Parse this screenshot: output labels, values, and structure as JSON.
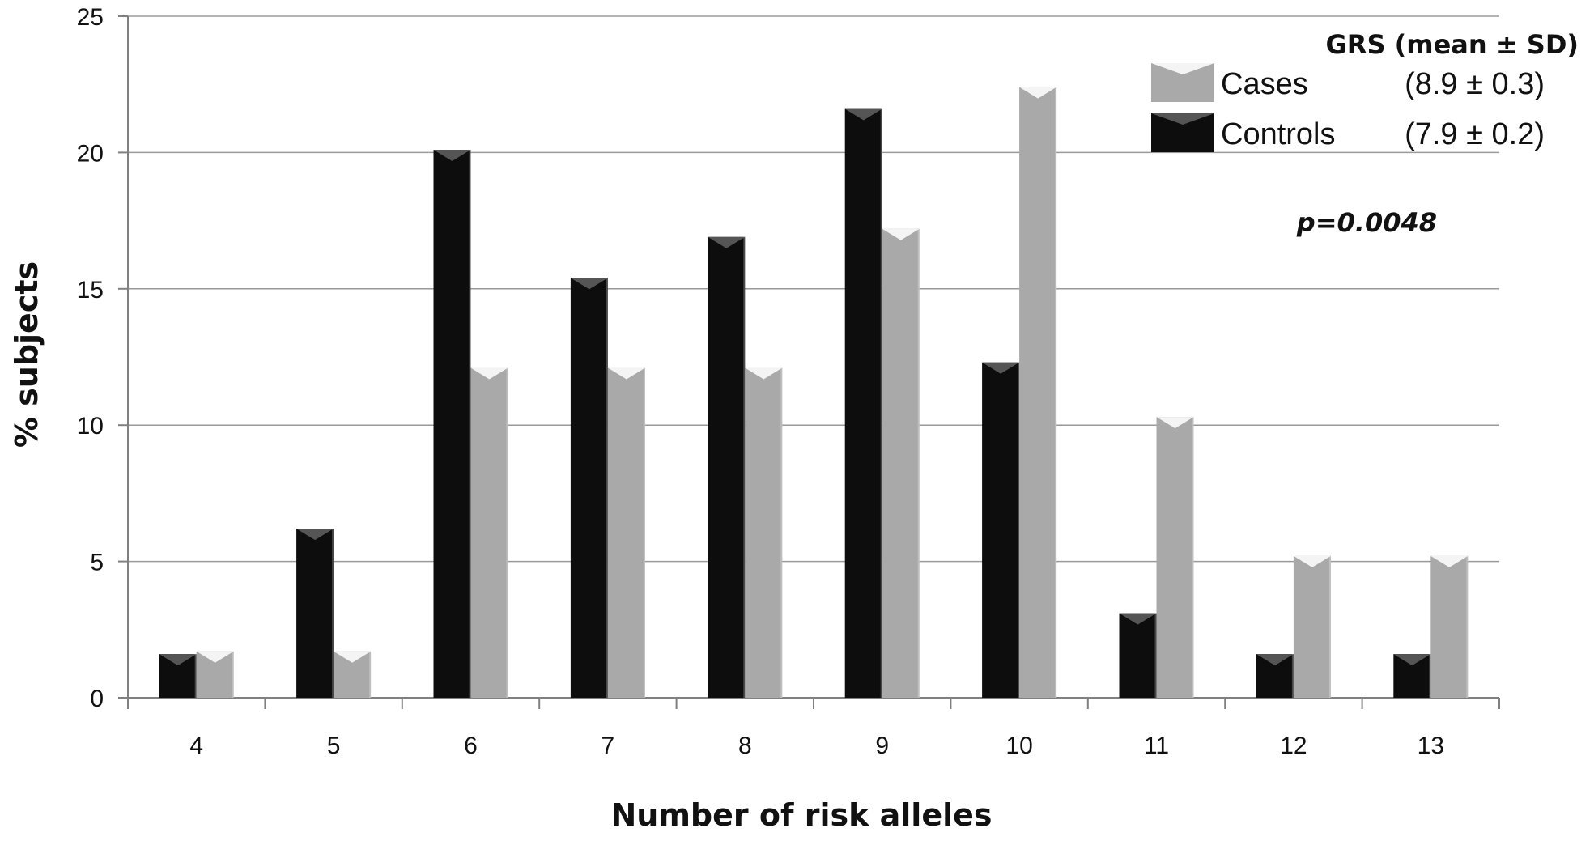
{
  "chart_data": {
    "type": "bar",
    "title": "",
    "xlabel": "Number of risk alleles",
    "ylabel": "% subjects",
    "categories": [
      "4",
      "5",
      "6",
      "7",
      "8",
      "9",
      "10",
      "11",
      "12",
      "13"
    ],
    "series": [
      {
        "name": "Controls",
        "stats": "(7.9 ± 0.2)",
        "color": "#0d0d0d",
        "capColor": "#555555",
        "values": [
          1.6,
          6.2,
          20.1,
          15.4,
          16.9,
          21.6,
          12.3,
          3.1,
          1.6,
          1.6
        ]
      },
      {
        "name": "Cases",
        "stats": "(8.9 ± 0.3)",
        "color": "#a9a9a9",
        "capColor": "#f4f4f4",
        "values": [
          1.7,
          1.7,
          12.1,
          12.1,
          12.1,
          17.2,
          22.4,
          10.3,
          5.2,
          5.2
        ]
      }
    ],
    "legend_order": [
      1,
      0
    ],
    "ylim": [
      0,
      25
    ],
    "yticks": [
      0,
      5,
      10,
      15,
      20,
      25
    ],
    "grid": true,
    "legend": {
      "title": "GRS (mean ± SD)",
      "position": "top-right"
    },
    "annotation": "p=0.0048"
  }
}
